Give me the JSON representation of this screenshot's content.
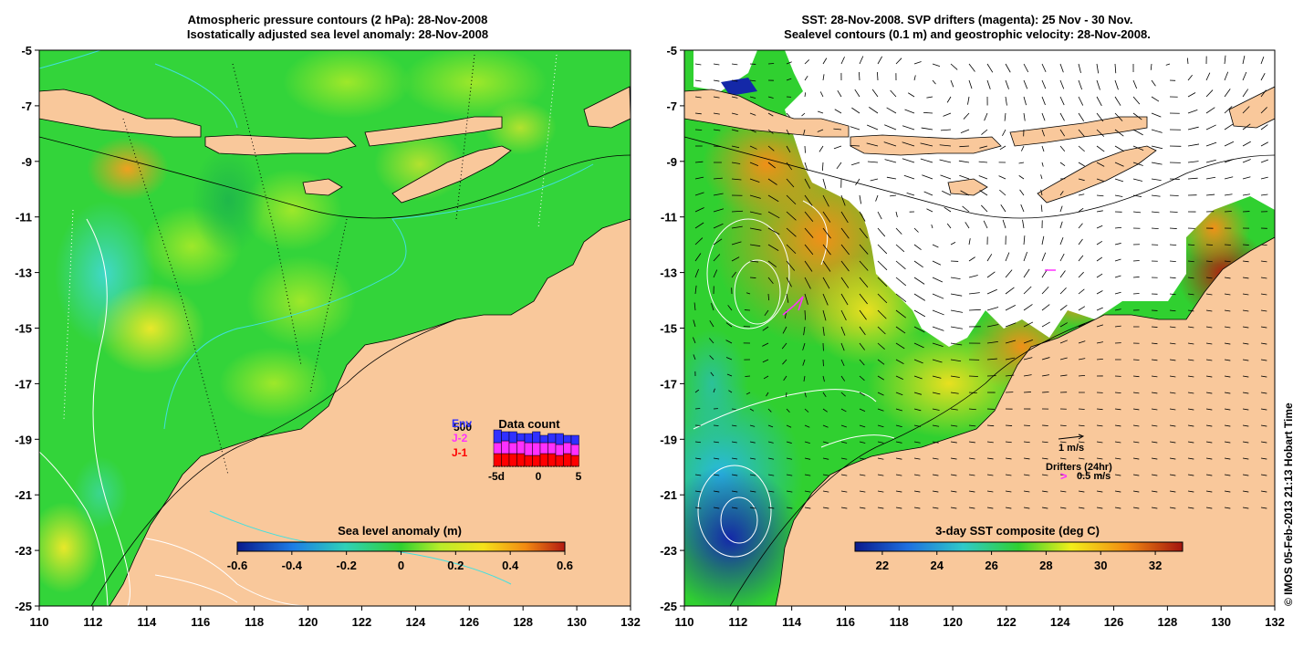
{
  "left_panel": {
    "title_line1": "Atmospheric pressure contours (2 hPa): 28-Nov-2008",
    "title_line2": "Isostatically adjusted sea level anomaly: 28-Nov-2008",
    "colorbar": {
      "label": "Sea level anomaly (m)",
      "ticks": [
        "-0.6",
        "-0.4",
        "-0.2",
        "0",
        "0.2",
        "0.4",
        "0.6"
      ],
      "min": -0.6,
      "max": 0.6
    },
    "data_count": {
      "title": "Data count",
      "legend": [
        {
          "label": "Env",
          "color": "#3030ff"
        },
        {
          "label": "J-2",
          "color": "#ff30ff"
        },
        {
          "label": "J-1",
          "color": "#ff0000"
        }
      ],
      "ymax_label": "500",
      "xticks": [
        "-5d",
        "0",
        "5"
      ],
      "bars": [
        {
          "env": 0.35,
          "j2": 0.3,
          "j1": 0.35
        },
        {
          "env": 0.25,
          "j2": 0.35,
          "j1": 0.35
        },
        {
          "env": 0.3,
          "j2": 0.3,
          "j1": 0.35
        },
        {
          "env": 0.2,
          "j2": 0.35,
          "j1": 0.35
        },
        {
          "env": 0.25,
          "j2": 0.35,
          "j1": 0.3
        },
        {
          "env": 0.3,
          "j2": 0.35,
          "j1": 0.3
        },
        {
          "env": 0.2,
          "j2": 0.3,
          "j1": 0.35
        },
        {
          "env": 0.25,
          "j2": 0.3,
          "j1": 0.35
        },
        {
          "env": 0.3,
          "j2": 0.3,
          "j1": 0.3
        },
        {
          "env": 0.2,
          "j2": 0.3,
          "j1": 0.35
        },
        {
          "env": 0.25,
          "j2": 0.3,
          "j1": 0.3
        }
      ]
    }
  },
  "right_panel": {
    "title_line1": "SST: 28-Nov-2008. SVP drifters (magenta): 25 Nov - 30 Nov.",
    "title_line2": "Sealevel contours (0.1 m) and geostrophic velocity: 28-Nov-2008.",
    "colorbar": {
      "label": "3-day SST composite (deg C)",
      "ticks": [
        "22",
        "24",
        "26",
        "28",
        "30",
        "32"
      ],
      "min": 21,
      "max": 33
    },
    "velocity_legend": "1 m/s",
    "drifters_legend": "Drifters (24hr)",
    "drifters_speed": "0.5 m/s",
    "drifters_symbol": ">"
  },
  "axes": {
    "lon_ticks": [
      "110",
      "112",
      "114",
      "116",
      "118",
      "120",
      "122",
      "124",
      "126",
      "128",
      "130",
      "132"
    ],
    "lat_ticks": [
      "-5",
      "-7",
      "-9",
      "-11",
      "-13",
      "-15",
      "-17",
      "-19",
      "-21",
      "-23",
      "-25"
    ],
    "lon_range": [
      110,
      132
    ],
    "lat_range": [
      -25,
      -5
    ]
  },
  "credit": "© IMOS 05-Feb-2013 21:13 Hobart Time",
  "colors": {
    "land": "#f9c89b",
    "sea_base_left": "#33d43a",
    "cloud_white": "#ffffff"
  }
}
